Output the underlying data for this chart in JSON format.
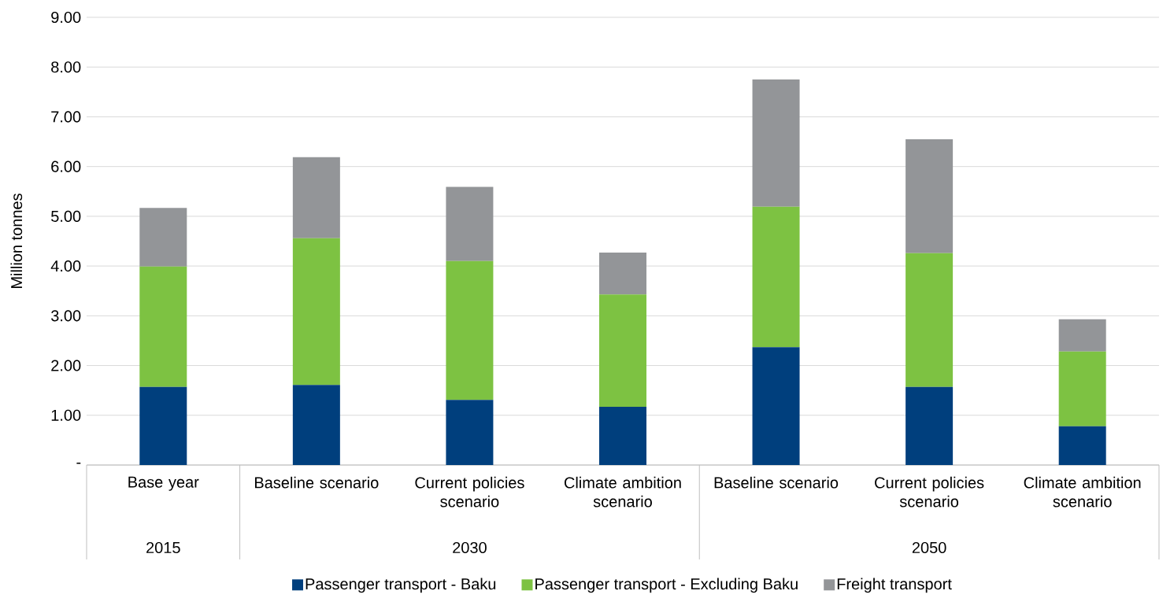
{
  "chart_data": {
    "type": "bar",
    "stacked": true,
    "ylabel": "Million tonnes",
    "categories": [
      "Base year",
      "Baseline scenario",
      "Current policies scenario",
      "Climate ambition scenario",
      "Baseline scenario",
      "Current policies scenario",
      "Climate ambition scenario"
    ],
    "annotations": [
      "2015",
      "2030",
      "2050"
    ],
    "series": [
      {
        "name": "Passenger transport - Baku",
        "color": "#003f7d",
        "values": [
          1.57,
          1.61,
          1.31,
          1.17,
          2.37,
          1.57,
          0.78
        ]
      },
      {
        "name": "Passenger transport - Excluding Baku",
        "color": "#7dc242",
        "values": [
          2.42,
          2.95,
          2.79,
          2.26,
          2.82,
          2.69,
          1.5
        ]
      },
      {
        "name": "Freight transport",
        "color": "#939598",
        "values": [
          1.18,
          1.63,
          1.49,
          0.84,
          2.56,
          2.29,
          0.65
        ]
      }
    ],
    "ylim": [
      0,
      9
    ],
    "yticks": [
      {
        "value": 0,
        "label": "-"
      },
      {
        "value": 1,
        "label": "1.00"
      },
      {
        "value": 2,
        "label": "2.00"
      },
      {
        "value": 3,
        "label": "3.00"
      },
      {
        "value": 4,
        "label": "4.00"
      },
      {
        "value": 5,
        "label": "5.00"
      },
      {
        "value": 6,
        "label": "6.00"
      },
      {
        "value": 7,
        "label": "7.00"
      },
      {
        "value": 8,
        "label": "8.00"
      },
      {
        "value": 9,
        "label": "9.00"
      }
    ],
    "grid": "y",
    "legend": "bottom"
  }
}
